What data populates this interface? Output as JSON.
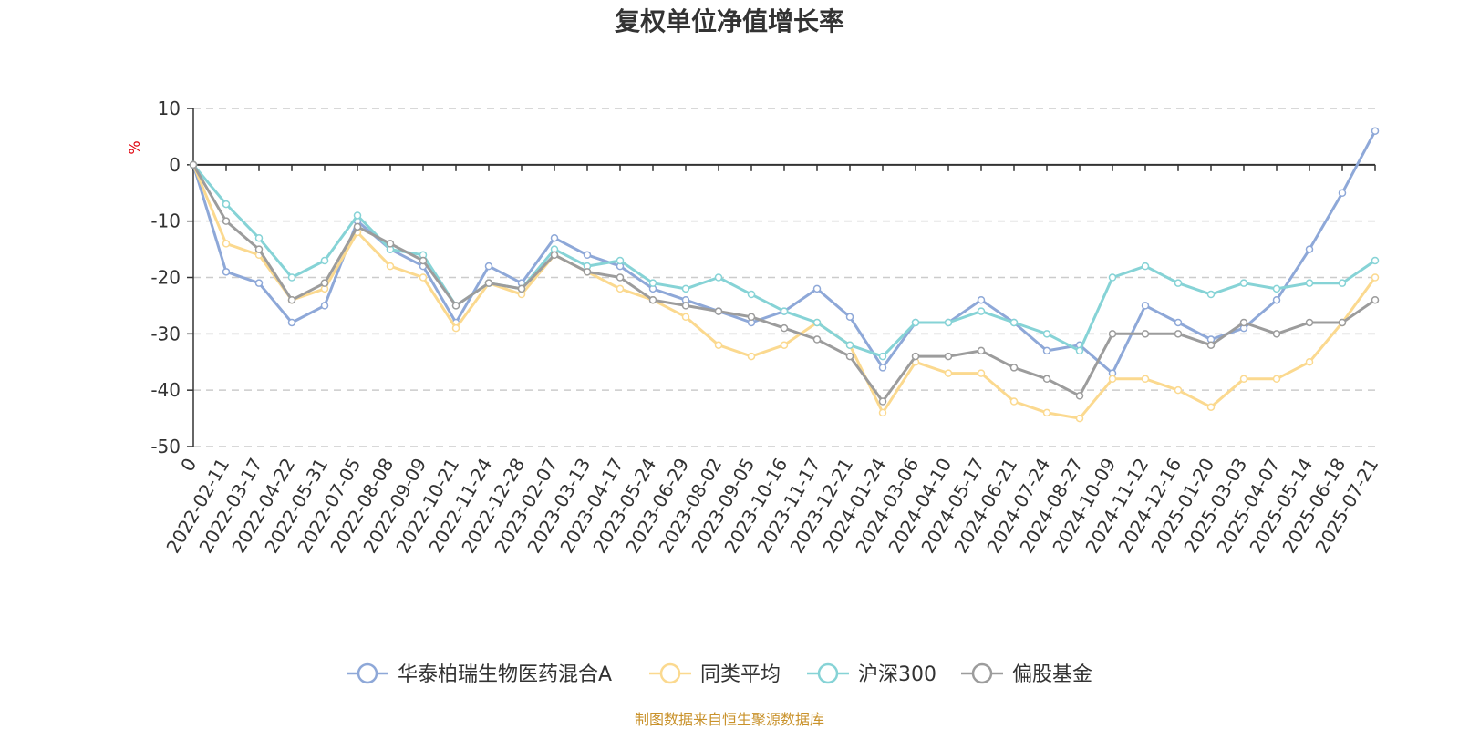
{
  "chart_data": {
    "type": "line",
    "title": "复权单位净值增长率",
    "ylabel": "%",
    "ylim": [
      -50,
      10
    ],
    "yticks": [
      10,
      0,
      -10,
      -20,
      -30,
      -40,
      -50
    ],
    "x_tick_labels": [
      "0",
      "2022-02-11",
      "2022-03-17",
      "2022-04-22",
      "2022-05-31",
      "2022-07-05",
      "2022-08-08",
      "2022-09-09",
      "2022-10-21",
      "2022-11-24",
      "2022-12-28",
      "2023-02-07",
      "2023-03-13",
      "2023-04-17",
      "2023-05-24",
      "2023-06-29",
      "2023-08-02",
      "2023-09-05",
      "2023-10-16",
      "2023-11-17",
      "2023-12-21",
      "2024-01-24",
      "2024-03-06",
      "2024-04-10",
      "2024-05-17",
      "2024-06-21",
      "2024-07-24",
      "2024-08-27",
      "2024-10-09",
      "2024-11-12",
      "2024-12-16",
      "2025-01-20",
      "2025-03-03",
      "2025-04-07",
      "2025-05-14",
      "2025-06-18",
      "2025-07-21"
    ],
    "grid": "dashed-horizontal",
    "legend_position": "bottom-center",
    "source_note": "制图数据来自恒生聚源数据库",
    "series": [
      {
        "name": "华泰柏瑞生物医药混合A",
        "color": "#8ea8d8",
        "values": [
          0,
          -19,
          -21,
          -28,
          -25,
          -10,
          -15,
          -18,
          -28,
          -18,
          -21,
          -13,
          -16,
          -18,
          -22,
          -24,
          -26,
          -28,
          -26,
          -22,
          -27,
          -36,
          -28,
          -28,
          -24,
          -28,
          -33,
          -32,
          -37,
          -25,
          -28,
          -31,
          -29,
          -24,
          -15,
          -5,
          6
        ]
      },
      {
        "name": "同类平均",
        "color": "#fbd98f",
        "values": [
          0,
          -14,
          -16,
          -24,
          -22,
          -12,
          -18,
          -20,
          -29,
          -21,
          -23,
          -16,
          -19,
          -22,
          -24,
          -27,
          -32,
          -34,
          -32,
          -28,
          -32,
          -44,
          -35,
          -37,
          -37,
          -42,
          -44,
          -45,
          -38,
          -38,
          -40,
          -43,
          -38,
          -38,
          -35,
          -28,
          -20
        ]
      },
      {
        "name": "沪深300",
        "color": "#86d3d6",
        "values": [
          0,
          -7,
          -13,
          -20,
          -17,
          -9,
          -15,
          -16,
          -25,
          -21,
          -22,
          -15,
          -18,
          -17,
          -21,
          -22,
          -20,
          -23,
          -26,
          -28,
          -32,
          -34,
          -28,
          -28,
          -26,
          -28,
          -30,
          -33,
          -20,
          -18,
          -21,
          -23,
          -21,
          -22,
          -21,
          -21,
          -17
        ]
      },
      {
        "name": "偏股基金",
        "color": "#9c9c9c",
        "values": [
          0,
          -10,
          -15,
          -24,
          -21,
          -11,
          -14,
          -17,
          -25,
          -21,
          -22,
          -16,
          -19,
          -20,
          -24,
          -25,
          -26,
          -27,
          -29,
          -31,
          -34,
          -42,
          -34,
          -34,
          -33,
          -36,
          -38,
          -41,
          -30,
          -30,
          -30,
          -32,
          -28,
          -30,
          -28,
          -28,
          -24
        ]
      }
    ]
  }
}
